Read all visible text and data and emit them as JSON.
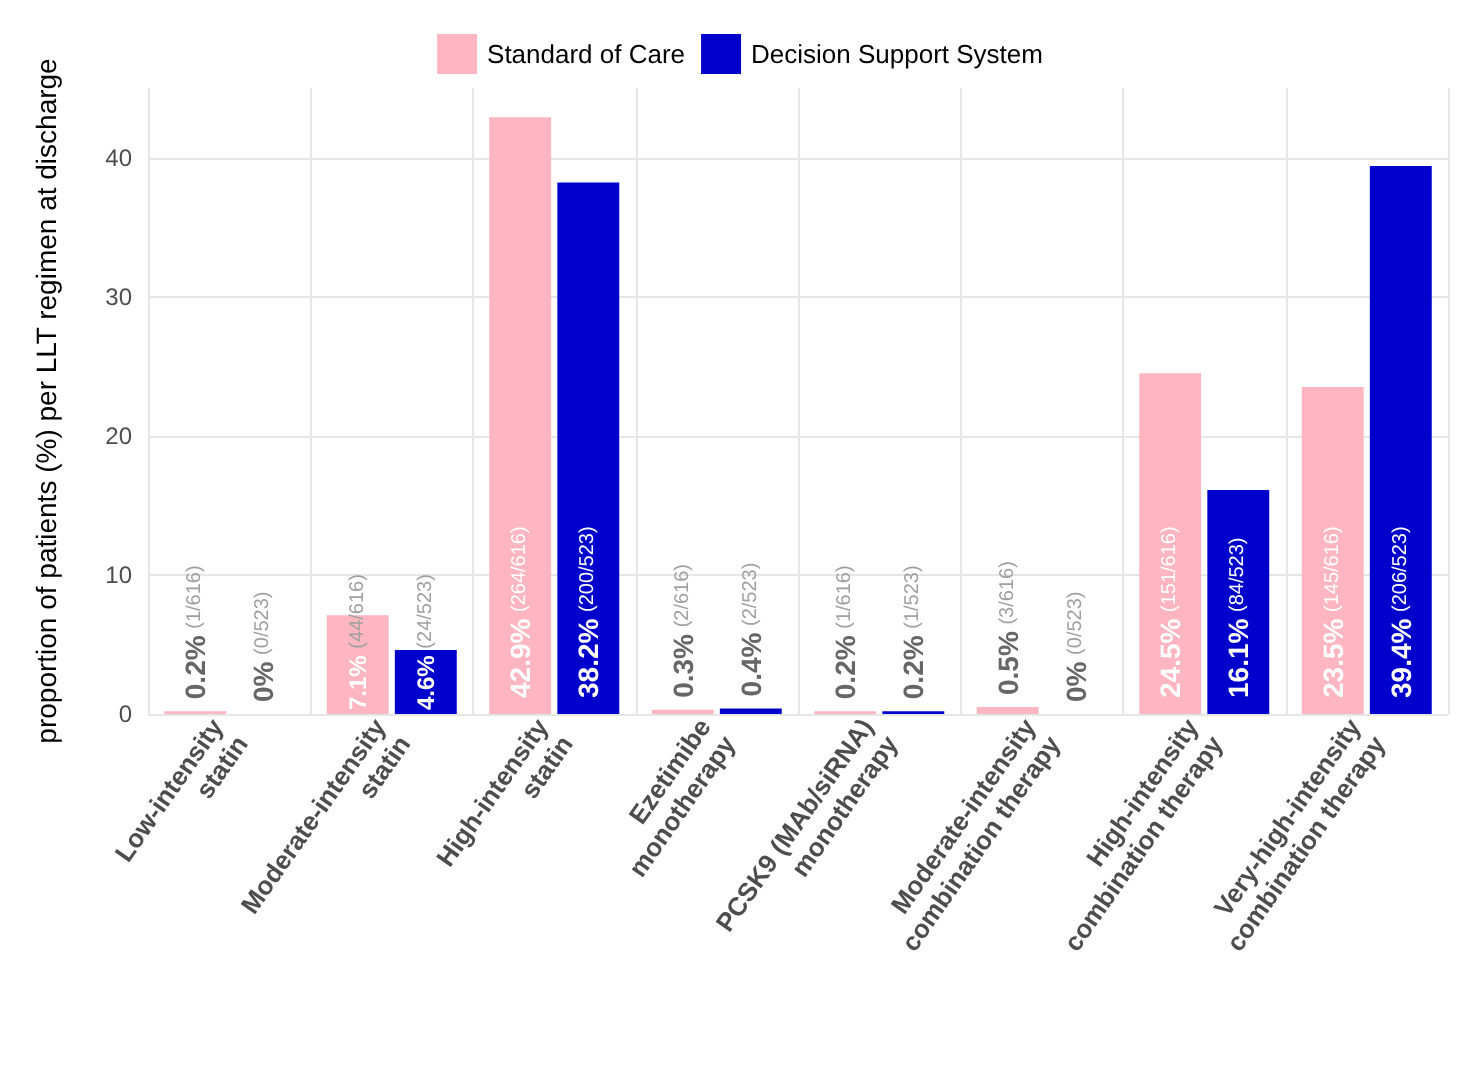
{
  "chart_data": {
    "type": "bar",
    "ylabel": "proportion of patients (%) per LLT regimen at discharge",
    "categories": [
      "Low-intensity\nstatin",
      "Moderate-intensity\nstatin",
      "High-intensity\nstatin",
      "Ezetimibe\nmonotherapy",
      "PCSK9 (MAb/siRNA)\nmonotherapy",
      "Moderate-intensity\ncombination therapy",
      "High-intensity\ncombination therapy",
      "Very-high-intensity\ncombination therapy"
    ],
    "series": [
      {
        "name": "Standard of Care",
        "color": "#ffb6c1",
        "values": [
          0.2,
          7.1,
          42.9,
          0.3,
          0.2,
          0.5,
          24.5,
          23.5
        ],
        "value_labels": [
          "0.2% (1/616)",
          "7.1% (44/616)",
          "42.9% (264/616)",
          "0.3% (2/616)",
          "0.2% (1/616)",
          "0.5% (3/616)",
          "24.5% (151/616)",
          "23.5% (145/616)"
        ]
      },
      {
        "name": "Decision Support System",
        "color": "#0000cd",
        "values": [
          0,
          4.6,
          38.2,
          0.4,
          0.2,
          0,
          16.1,
          39.4
        ],
        "value_labels": [
          "0% (0/523)",
          "4.6% (24/523)",
          "38.2% (200/523)",
          "0.4% (2/523)",
          "0.2% (1/523)",
          "0% (0/523)",
          "16.1% (84/523)",
          "39.4% (206/523)"
        ]
      }
    ],
    "ylim": [
      0,
      45
    ],
    "yticks": [
      0,
      10,
      20,
      30,
      40
    ],
    "grid": true,
    "legend": "top"
  }
}
